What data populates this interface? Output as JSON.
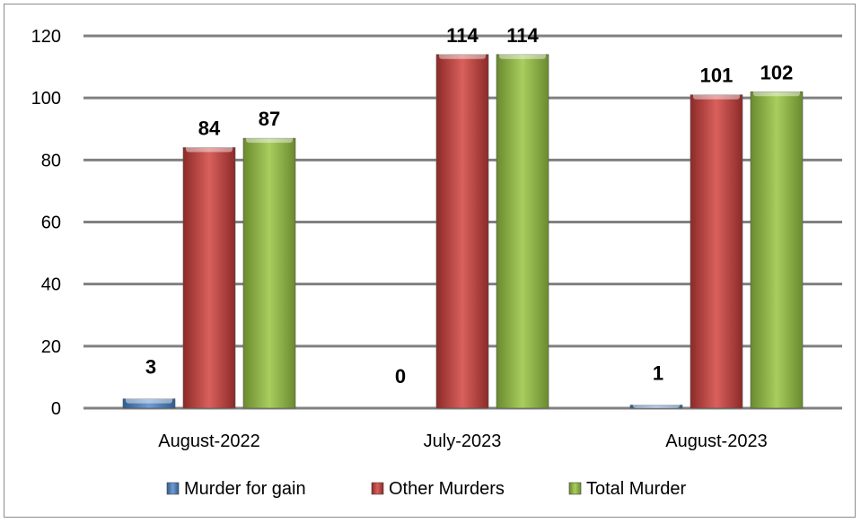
{
  "chart_data": {
    "type": "bar",
    "categories": [
      "August-2022",
      "July-2023",
      "August-2023"
    ],
    "series": [
      {
        "name": "Murder for gain",
        "values": [
          3,
          0,
          1
        ],
        "color": "#4f81bd"
      },
      {
        "name": "Other Murders",
        "values": [
          84,
          114,
          101
        ],
        "color": "#c0504d"
      },
      {
        "name": "Total Murder",
        "values": [
          87,
          114,
          102
        ],
        "color": "#9bbb59"
      }
    ],
    "y_ticks": [
      "0",
      "20",
      "40",
      "60",
      "80",
      "100",
      "120"
    ],
    "ylim": [
      0,
      120
    ],
    "grid": true,
    "legend_position": "bottom"
  }
}
